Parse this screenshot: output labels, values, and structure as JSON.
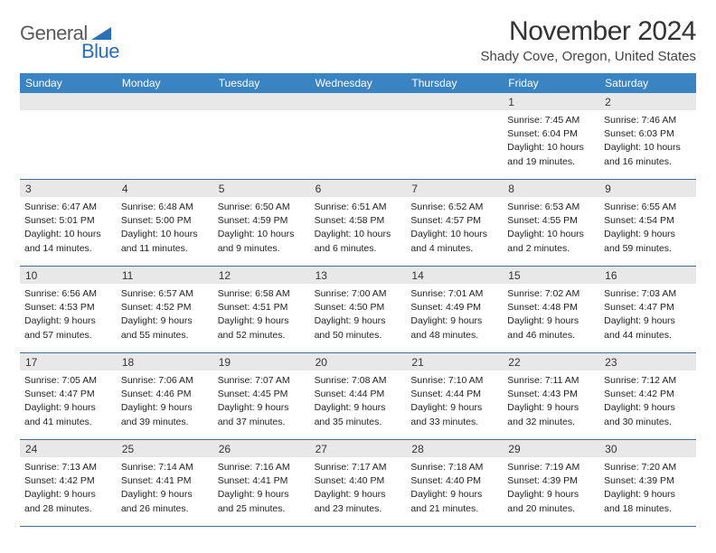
{
  "brand": {
    "word1": "General",
    "word2": "Blue"
  },
  "title": "November 2024",
  "subtitle": "Shady Cove, Oregon, United States",
  "colors": {
    "header_bg": "#3b84c4",
    "header_text": "#ffffff",
    "daynum_bg": "#e8e8e8",
    "rule": "#4a6a8a",
    "brand_gray": "#5a5a5a",
    "brand_blue": "#2b6fb5"
  },
  "weekdays": [
    "Sunday",
    "Monday",
    "Tuesday",
    "Wednesday",
    "Thursday",
    "Friday",
    "Saturday"
  ],
  "weeks": [
    [
      null,
      null,
      null,
      null,
      null,
      {
        "n": "1",
        "sunrise": "Sunrise: 7:45 AM",
        "sunset": "Sunset: 6:04 PM",
        "dl1": "Daylight: 10 hours",
        "dl2": "and 19 minutes."
      },
      {
        "n": "2",
        "sunrise": "Sunrise: 7:46 AM",
        "sunset": "Sunset: 6:03 PM",
        "dl1": "Daylight: 10 hours",
        "dl2": "and 16 minutes."
      }
    ],
    [
      {
        "n": "3",
        "sunrise": "Sunrise: 6:47 AM",
        "sunset": "Sunset: 5:01 PM",
        "dl1": "Daylight: 10 hours",
        "dl2": "and 14 minutes."
      },
      {
        "n": "4",
        "sunrise": "Sunrise: 6:48 AM",
        "sunset": "Sunset: 5:00 PM",
        "dl1": "Daylight: 10 hours",
        "dl2": "and 11 minutes."
      },
      {
        "n": "5",
        "sunrise": "Sunrise: 6:50 AM",
        "sunset": "Sunset: 4:59 PM",
        "dl1": "Daylight: 10 hours",
        "dl2": "and 9 minutes."
      },
      {
        "n": "6",
        "sunrise": "Sunrise: 6:51 AM",
        "sunset": "Sunset: 4:58 PM",
        "dl1": "Daylight: 10 hours",
        "dl2": "and 6 minutes."
      },
      {
        "n": "7",
        "sunrise": "Sunrise: 6:52 AM",
        "sunset": "Sunset: 4:57 PM",
        "dl1": "Daylight: 10 hours",
        "dl2": "and 4 minutes."
      },
      {
        "n": "8",
        "sunrise": "Sunrise: 6:53 AM",
        "sunset": "Sunset: 4:55 PM",
        "dl1": "Daylight: 10 hours",
        "dl2": "and 2 minutes."
      },
      {
        "n": "9",
        "sunrise": "Sunrise: 6:55 AM",
        "sunset": "Sunset: 4:54 PM",
        "dl1": "Daylight: 9 hours",
        "dl2": "and 59 minutes."
      }
    ],
    [
      {
        "n": "10",
        "sunrise": "Sunrise: 6:56 AM",
        "sunset": "Sunset: 4:53 PM",
        "dl1": "Daylight: 9 hours",
        "dl2": "and 57 minutes."
      },
      {
        "n": "11",
        "sunrise": "Sunrise: 6:57 AM",
        "sunset": "Sunset: 4:52 PM",
        "dl1": "Daylight: 9 hours",
        "dl2": "and 55 minutes."
      },
      {
        "n": "12",
        "sunrise": "Sunrise: 6:58 AM",
        "sunset": "Sunset: 4:51 PM",
        "dl1": "Daylight: 9 hours",
        "dl2": "and 52 minutes."
      },
      {
        "n": "13",
        "sunrise": "Sunrise: 7:00 AM",
        "sunset": "Sunset: 4:50 PM",
        "dl1": "Daylight: 9 hours",
        "dl2": "and 50 minutes."
      },
      {
        "n": "14",
        "sunrise": "Sunrise: 7:01 AM",
        "sunset": "Sunset: 4:49 PM",
        "dl1": "Daylight: 9 hours",
        "dl2": "and 48 minutes."
      },
      {
        "n": "15",
        "sunrise": "Sunrise: 7:02 AM",
        "sunset": "Sunset: 4:48 PM",
        "dl1": "Daylight: 9 hours",
        "dl2": "and 46 minutes."
      },
      {
        "n": "16",
        "sunrise": "Sunrise: 7:03 AM",
        "sunset": "Sunset: 4:47 PM",
        "dl1": "Daylight: 9 hours",
        "dl2": "and 44 minutes."
      }
    ],
    [
      {
        "n": "17",
        "sunrise": "Sunrise: 7:05 AM",
        "sunset": "Sunset: 4:47 PM",
        "dl1": "Daylight: 9 hours",
        "dl2": "and 41 minutes."
      },
      {
        "n": "18",
        "sunrise": "Sunrise: 7:06 AM",
        "sunset": "Sunset: 4:46 PM",
        "dl1": "Daylight: 9 hours",
        "dl2": "and 39 minutes."
      },
      {
        "n": "19",
        "sunrise": "Sunrise: 7:07 AM",
        "sunset": "Sunset: 4:45 PM",
        "dl1": "Daylight: 9 hours",
        "dl2": "and 37 minutes."
      },
      {
        "n": "20",
        "sunrise": "Sunrise: 7:08 AM",
        "sunset": "Sunset: 4:44 PM",
        "dl1": "Daylight: 9 hours",
        "dl2": "and 35 minutes."
      },
      {
        "n": "21",
        "sunrise": "Sunrise: 7:10 AM",
        "sunset": "Sunset: 4:44 PM",
        "dl1": "Daylight: 9 hours",
        "dl2": "and 33 minutes."
      },
      {
        "n": "22",
        "sunrise": "Sunrise: 7:11 AM",
        "sunset": "Sunset: 4:43 PM",
        "dl1": "Daylight: 9 hours",
        "dl2": "and 32 minutes."
      },
      {
        "n": "23",
        "sunrise": "Sunrise: 7:12 AM",
        "sunset": "Sunset: 4:42 PM",
        "dl1": "Daylight: 9 hours",
        "dl2": "and 30 minutes."
      }
    ],
    [
      {
        "n": "24",
        "sunrise": "Sunrise: 7:13 AM",
        "sunset": "Sunset: 4:42 PM",
        "dl1": "Daylight: 9 hours",
        "dl2": "and 28 minutes."
      },
      {
        "n": "25",
        "sunrise": "Sunrise: 7:14 AM",
        "sunset": "Sunset: 4:41 PM",
        "dl1": "Daylight: 9 hours",
        "dl2": "and 26 minutes."
      },
      {
        "n": "26",
        "sunrise": "Sunrise: 7:16 AM",
        "sunset": "Sunset: 4:41 PM",
        "dl1": "Daylight: 9 hours",
        "dl2": "and 25 minutes."
      },
      {
        "n": "27",
        "sunrise": "Sunrise: 7:17 AM",
        "sunset": "Sunset: 4:40 PM",
        "dl1": "Daylight: 9 hours",
        "dl2": "and 23 minutes."
      },
      {
        "n": "28",
        "sunrise": "Sunrise: 7:18 AM",
        "sunset": "Sunset: 4:40 PM",
        "dl1": "Daylight: 9 hours",
        "dl2": "and 21 minutes."
      },
      {
        "n": "29",
        "sunrise": "Sunrise: 7:19 AM",
        "sunset": "Sunset: 4:39 PM",
        "dl1": "Daylight: 9 hours",
        "dl2": "and 20 minutes."
      },
      {
        "n": "30",
        "sunrise": "Sunrise: 7:20 AM",
        "sunset": "Sunset: 4:39 PM",
        "dl1": "Daylight: 9 hours",
        "dl2": "and 18 minutes."
      }
    ]
  ]
}
